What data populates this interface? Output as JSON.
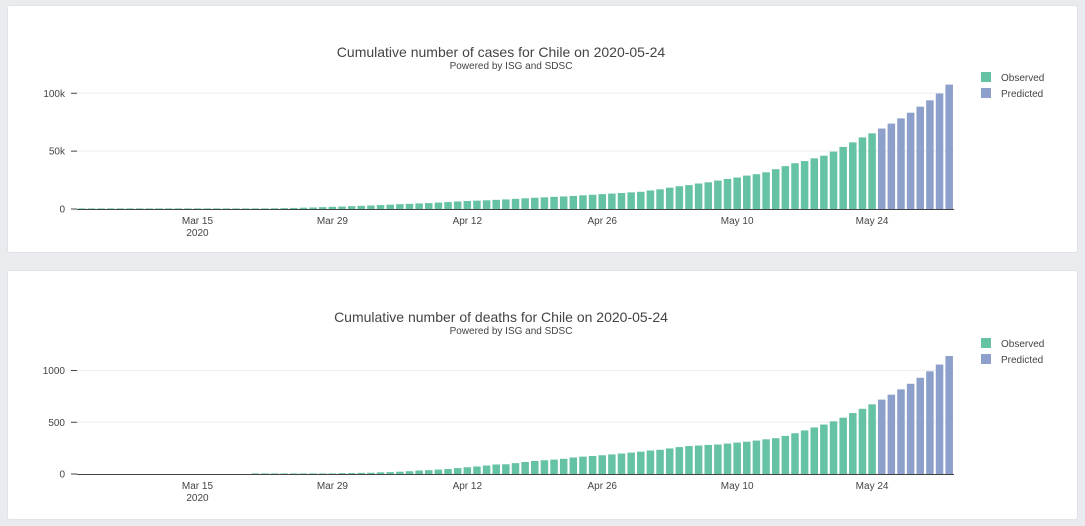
{
  "colors": {
    "observed": "#66c2a5",
    "predicted": "#8da0cb"
  },
  "chart_data": [
    {
      "type": "bar",
      "title": "Cumulative number of cases for Chile on 2020-05-24",
      "subtitle": "Powered by ISG and SDSC",
      "x_start": "2020-03-03",
      "x_ticks": [
        {
          "date": "2020-03-15",
          "label": "Mar 15",
          "sublabel": "2020"
        },
        {
          "date": "2020-03-29",
          "label": "Mar 29",
          "sublabel": ""
        },
        {
          "date": "2020-04-12",
          "label": "Apr 12",
          "sublabel": ""
        },
        {
          "date": "2020-04-26",
          "label": "Apr 26",
          "sublabel": ""
        },
        {
          "date": "2020-05-10",
          "label": "May 10",
          "sublabel": ""
        },
        {
          "date": "2020-05-24",
          "label": "May 24",
          "sublabel": ""
        }
      ],
      "y_ticks": [
        {
          "value": 0,
          "label": "0"
        },
        {
          "value": 50000,
          "label": "50k"
        },
        {
          "value": 100000,
          "label": "100k"
        }
      ],
      "ylim": [
        0,
        108000
      ],
      "legend": {
        "position": "top-right",
        "entries": [
          "Observed",
          "Predicted"
        ]
      },
      "series": [
        {
          "name": "Observed",
          "start_date": "2020-03-03",
          "values": [
            1,
            1,
            4,
            5,
            7,
            10,
            13,
            17,
            23,
            33,
            43,
            61,
            75,
            155,
            201,
            238,
            238,
            342,
            434,
            537,
            632,
            746,
            922,
            1142,
            1306,
            1610,
            1909,
            2139,
            2449,
            2738,
            3031,
            3404,
            3737,
            4161,
            4471,
            4815,
            5116,
            5546,
            5972,
            6501,
            6927,
            7213,
            7525,
            7917,
            8273,
            8807,
            9252,
            9730,
            10088,
            10507,
            10832,
            11296,
            11812,
            12306,
            12858,
            13331,
            13813,
            14365,
            14885,
            16023,
            17008,
            18435,
            19663,
            20643,
            22016,
            23048,
            24581,
            25972,
            27219,
            28866,
            30063,
            31721,
            34381,
            37040,
            39542,
            41428,
            43781,
            46059,
            49579,
            53617,
            57581,
            61857,
            65393
          ],
          "end_date": "2020-05-24"
        },
        {
          "name": "Predicted",
          "start_date": "2020-05-25",
          "values": [
            69500,
            73800,
            78300,
            83200,
            88400,
            93900,
            99800,
            107500
          ]
        }
      ]
    },
    {
      "type": "bar",
      "title": "Cumulative number of deaths for Chile on 2020-05-24",
      "subtitle": "Powered by ISG and SDSC",
      "x_start": "2020-03-03",
      "x_ticks": [
        {
          "date": "2020-03-15",
          "label": "Mar 15",
          "sublabel": "2020"
        },
        {
          "date": "2020-03-29",
          "label": "Mar 29",
          "sublabel": ""
        },
        {
          "date": "2020-04-12",
          "label": "Apr 12",
          "sublabel": ""
        },
        {
          "date": "2020-04-26",
          "label": "Apr 26",
          "sublabel": ""
        },
        {
          "date": "2020-05-10",
          "label": "May 10",
          "sublabel": ""
        },
        {
          "date": "2020-05-24",
          "label": "May 24",
          "sublabel": ""
        }
      ],
      "y_ticks": [
        {
          "value": 0,
          "label": "0"
        },
        {
          "value": 500,
          "label": "500"
        },
        {
          "value": 1000,
          "label": "1000"
        }
      ],
      "ylim": [
        0,
        1150
      ],
      "legend": {
        "position": "top-right",
        "entries": [
          "Observed",
          "Predicted"
        ]
      },
      "series": [
        {
          "name": "Observed",
          "start_date": "2020-03-21",
          "values": [
            1,
            1,
            1,
            2,
            2,
            3,
            4,
            5,
            6,
            8,
            9,
            11,
            12,
            16,
            18,
            22,
            27,
            34,
            37,
            43,
            48,
            57,
            65,
            73,
            82,
            92,
            94,
            105,
            116,
            126,
            133,
            139,
            147,
            160,
            168,
            174,
            181,
            189,
            198,
            207,
            216,
            227,
            234,
            247,
            260,
            270,
            275,
            281,
            285,
            294,
            304,
            312,
            323,
            335,
            346,
            368,
            394,
            421,
            450,
            478,
            509,
            544,
            589,
            630,
            673
          ],
          "end_date": "2020-05-24"
        },
        {
          "name": "Predicted",
          "start_date": "2020-05-25",
          "values": [
            719,
            767,
            818,
            872,
            930,
            992,
            1058,
            1140
          ]
        }
      ]
    }
  ]
}
